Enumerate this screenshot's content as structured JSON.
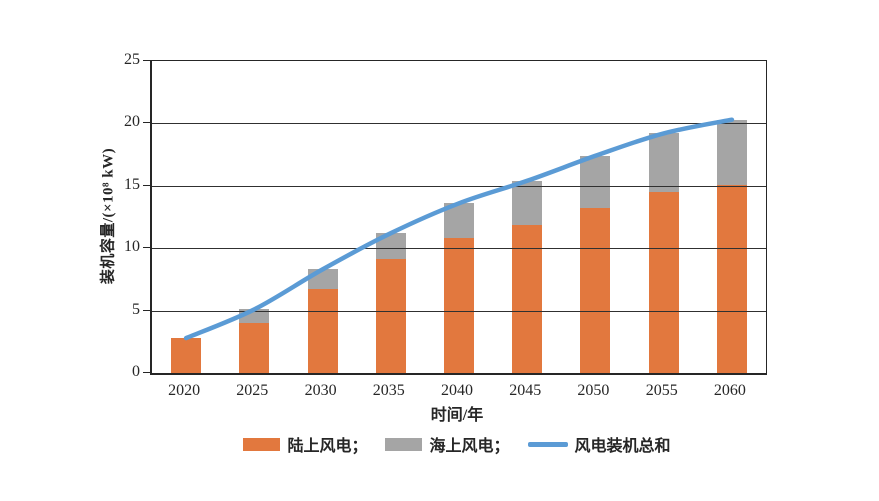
{
  "chart_data": {
    "type": "bar",
    "subtype": "stacked-bars-with-line-overlay",
    "title": "",
    "xlabel": "时间/年",
    "ylabel": "装机容量/(×10⁸ kW)",
    "categories": [
      "2020",
      "2025",
      "2030",
      "2035",
      "2040",
      "2045",
      "2050",
      "2055",
      "2060"
    ],
    "series": [
      {
        "name": "陆上风电",
        "type": "bar",
        "color": "#E2783E",
        "values": [
          2.8,
          4.0,
          6.7,
          9.1,
          10.8,
          11.9,
          13.2,
          14.5,
          15.1
        ]
      },
      {
        "name": "海上风电",
        "type": "bar",
        "color": "#A5A5A5",
        "values": [
          0,
          1.1,
          1.6,
          2.1,
          2.8,
          3.5,
          4.2,
          4.7,
          5.2
        ]
      },
      {
        "name": "风电装机总和",
        "type": "line",
        "color": "#5B9BD5",
        "values": [
          2.8,
          5.1,
          8.3,
          11.2,
          13.6,
          15.4,
          17.4,
          19.2,
          20.3
        ]
      }
    ],
    "legend_labels": [
      "陆上风电；",
      "海上风电；",
      "风电装机总和"
    ],
    "ylim": [
      0,
      25
    ],
    "yticks": [
      0,
      5,
      10,
      15,
      20,
      25
    ],
    "stacked": true,
    "grid": "horizontal",
    "legend_position": "bottom",
    "colors": {
      "onshore": "#E2783E",
      "offshore": "#A5A5A5",
      "total_line": "#5B9BD5",
      "axis": "#262626",
      "gridline": "#303030",
      "background": "#ffffff"
    }
  }
}
